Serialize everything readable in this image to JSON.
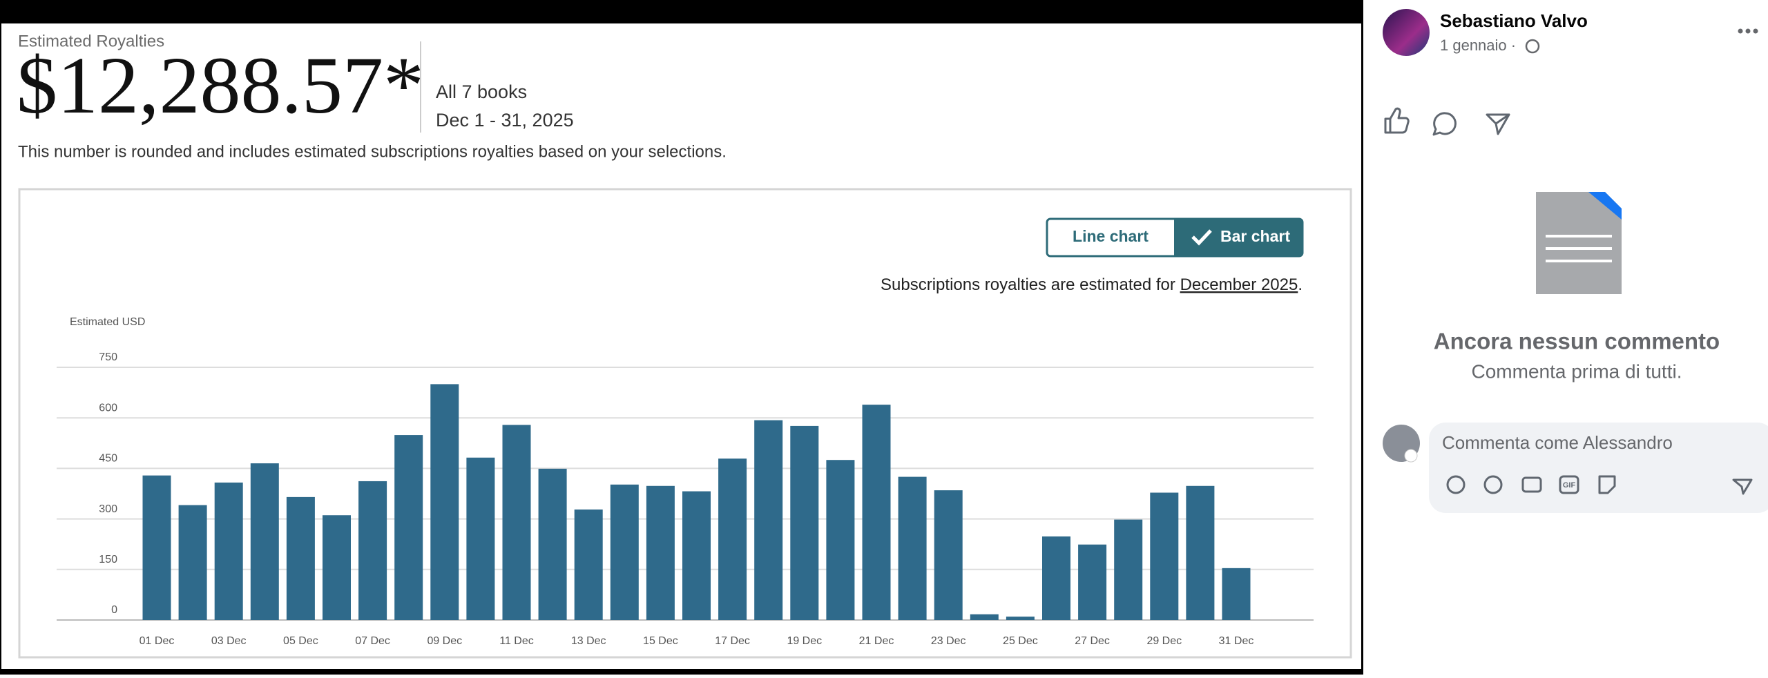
{
  "dashboard": {
    "label": "Estimated Royalties",
    "amount": "$12,288.57*",
    "books": "All 7 books",
    "period": "Dec 1 - 31, 2025",
    "note": "This number is rounded and includes estimated subscriptions royalties based on your selections.",
    "toggle": [
      "Line chart",
      "Bar chart"
    ],
    "subscription_note": "Subscriptions royalties are estimated for ",
    "subscription_link": "December 2025",
    "subscription_end": "."
  },
  "chart_data": {
    "type": "bar",
    "y_label": "Estimated USD",
    "categories": [
      "01 Dec",
      null,
      "03 Dec",
      null,
      "05 Dec",
      null,
      "07 Dec",
      null,
      "09 Dec",
      null,
      "11 Dec",
      null,
      "13 Dec",
      null,
      "15 Dec",
      null,
      "17 Dec",
      null,
      "19 Dec",
      null,
      "21 Dec",
      null,
      "23 Dec",
      null,
      "25 Dec",
      null,
      "27 Dec",
      null,
      "29 Dec",
      null,
      "31 Dec"
    ],
    "values": [
      429,
      341,
      408,
      465,
      365,
      311,
      412,
      549,
      700,
      482,
      579,
      449,
      328,
      402,
      398,
      382,
      479,
      593,
      576,
      475,
      639,
      425,
      385,
      17,
      10,
      248,
      224,
      298,
      378,
      398,
      154
    ],
    "color": "#2f6a8b",
    "ylim": [
      0,
      750
    ],
    "yticks": [
      0,
      150,
      300,
      450,
      600,
      750
    ],
    "grid": true
  },
  "post": {
    "author": "Sebastiano Valvo",
    "date": "1 gennaio ·"
  },
  "comments": {
    "empty_title": "Ancora nessun commento",
    "empty_subtitle": "Commenta prima di tutti.",
    "placeholder": "Commenta come Alessandro",
    "gif": "GIF"
  }
}
